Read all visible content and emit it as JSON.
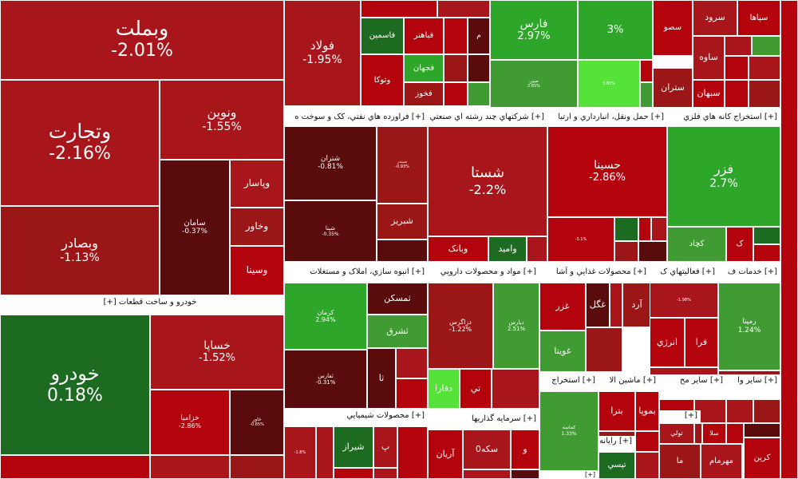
{
  "chart_data": {
    "type": "treemap",
    "colors": {
      "neg_3": "#b3040e",
      "neg_2": "#a8151b",
      "neg_1": "#9b1717",
      "neg_0": "#5a0b0b",
      "pos_0": "#1d6b20",
      "pos_1": "#3f9b32",
      "pos_2": "#2ea62a",
      "pos_3": "#55e33a"
    },
    "sectors": [
      {
        "label": "خودرو و ساخت قطعات [+]"
      },
      {
        "label": "[+] فراورده هاي نفتي، کک و سوخت ه"
      },
      {
        "label": "[+] شرکتهاي چند رشته اي صنعتي"
      },
      {
        "label": "[+] حمل ونقل، انبارداري و ارتبا"
      },
      {
        "label": "[+] استخراج کانه هاي فلزي"
      },
      {
        "label": "[+] انبوه سازي، املاک و مستغلات"
      },
      {
        "label": "[+] مواد و محصولات دارويي"
      },
      {
        "label": "[+] محصولات غذايي و آشا"
      },
      {
        "label": "[+] فعاليتهاي ک"
      },
      {
        "label": "[+] خدمات ف"
      },
      {
        "label": "[+] محصولات شيميايي"
      },
      {
        "label": "[+] سرمايه گذاريها"
      },
      {
        "label": "[+] استخراج"
      },
      {
        "label": "[+] ماشين الا"
      },
      {
        "label": "[+] ساير مح"
      },
      {
        "label": "[+] ساير وا"
      },
      {
        "label": "[+] رايانه و ف"
      },
      {
        "label": "[+]"
      },
      {
        "label": "[+]"
      }
    ],
    "tiles": [
      {
        "name": "وبملت",
        "change": -2.01
      },
      {
        "name": "وتجارت",
        "change": -2.16
      },
      {
        "name": "ونوين",
        "change": -1.55
      },
      {
        "name": "وبصادر",
        "change": -1.13
      },
      {
        "name": "سامان",
        "change": -0.37
      },
      {
        "name": "وپاسار"
      },
      {
        "name": "وخاور"
      },
      {
        "name": "وسينا"
      },
      {
        "name": "خودرو",
        "change": 0.18
      },
      {
        "name": "خساپا",
        "change": -1.52
      },
      {
        "name": "خزاميا",
        "change": -2.86
      },
      {
        "name": "خاور",
        "change": -0.65
      },
      {
        "name": "فولاد",
        "change": -1.95
      },
      {
        "name": "فاسمين"
      },
      {
        "name": "فباهنر"
      },
      {
        "name": "فجهان"
      },
      {
        "name": "وتوکا"
      },
      {
        "name": "فخوز"
      },
      {
        "name": "م"
      },
      {
        "name": "فارس",
        "change": 2.97
      },
      {
        "name": "",
        "change": 3
      },
      {
        "name": "مبين",
        "change": 2.65
      },
      {
        "name": "",
        "change": 3.65
      },
      {
        "name": "سصو"
      },
      {
        "name": "سرود"
      },
      {
        "name": "سپاها"
      },
      {
        "name": "ساوه"
      },
      {
        "name": "ستران"
      },
      {
        "name": "سبهان"
      },
      {
        "name": "شتران",
        "change": -0.81
      },
      {
        "name": "شبندر",
        "change": -0.93
      },
      {
        "name": "شپنا",
        "change": -0.35
      },
      {
        "name": "شبريز"
      },
      {
        "name": "شستا",
        "change": -2.2
      },
      {
        "name": "وبانک"
      },
      {
        "name": "واميد"
      },
      {
        "name": "حسينا",
        "change": -2.86
      },
      {
        "name": "",
        "change": -3.1
      },
      {
        "name": "فزر",
        "change": 2.7
      },
      {
        "name": "کچاد"
      },
      {
        "name": "ک"
      },
      {
        "name": "کرمان",
        "change": 2.94
      },
      {
        "name": "ثمسکن"
      },
      {
        "name": "ثشرق"
      },
      {
        "name": "ثفارس",
        "change": -0.31
      },
      {
        "name": "ثا"
      },
      {
        "name": "دزاگرس",
        "change": -1.22
      },
      {
        "name": "ديارس",
        "change": 2.51
      },
      {
        "name": "دفارا"
      },
      {
        "name": "تي"
      },
      {
        "name": "غزر"
      },
      {
        "name": "غگل"
      },
      {
        "name": "آرد"
      },
      {
        "name": "غويتا"
      },
      {
        "name": "",
        "change": -1.98
      },
      {
        "name": "فرا"
      },
      {
        "name": "انرژي"
      },
      {
        "name": "رمپنا",
        "change": 1.24
      },
      {
        "name": "",
        "change": -1.8
      },
      {
        "name": "شيراز"
      },
      {
        "name": "پ"
      },
      {
        "name": "آريان"
      },
      {
        "name": "سکه0"
      },
      {
        "name": "و"
      },
      {
        "name": "کماسه",
        "change": 1.33
      },
      {
        "name": "بترا"
      },
      {
        "name": "بموپا"
      },
      {
        "name": "تولي"
      },
      {
        "name": "سلا"
      },
      {
        "name": "ما"
      },
      {
        "name": "مهرمام"
      },
      {
        "name": "کرين"
      },
      {
        "name": "تپسي"
      }
    ]
  }
}
